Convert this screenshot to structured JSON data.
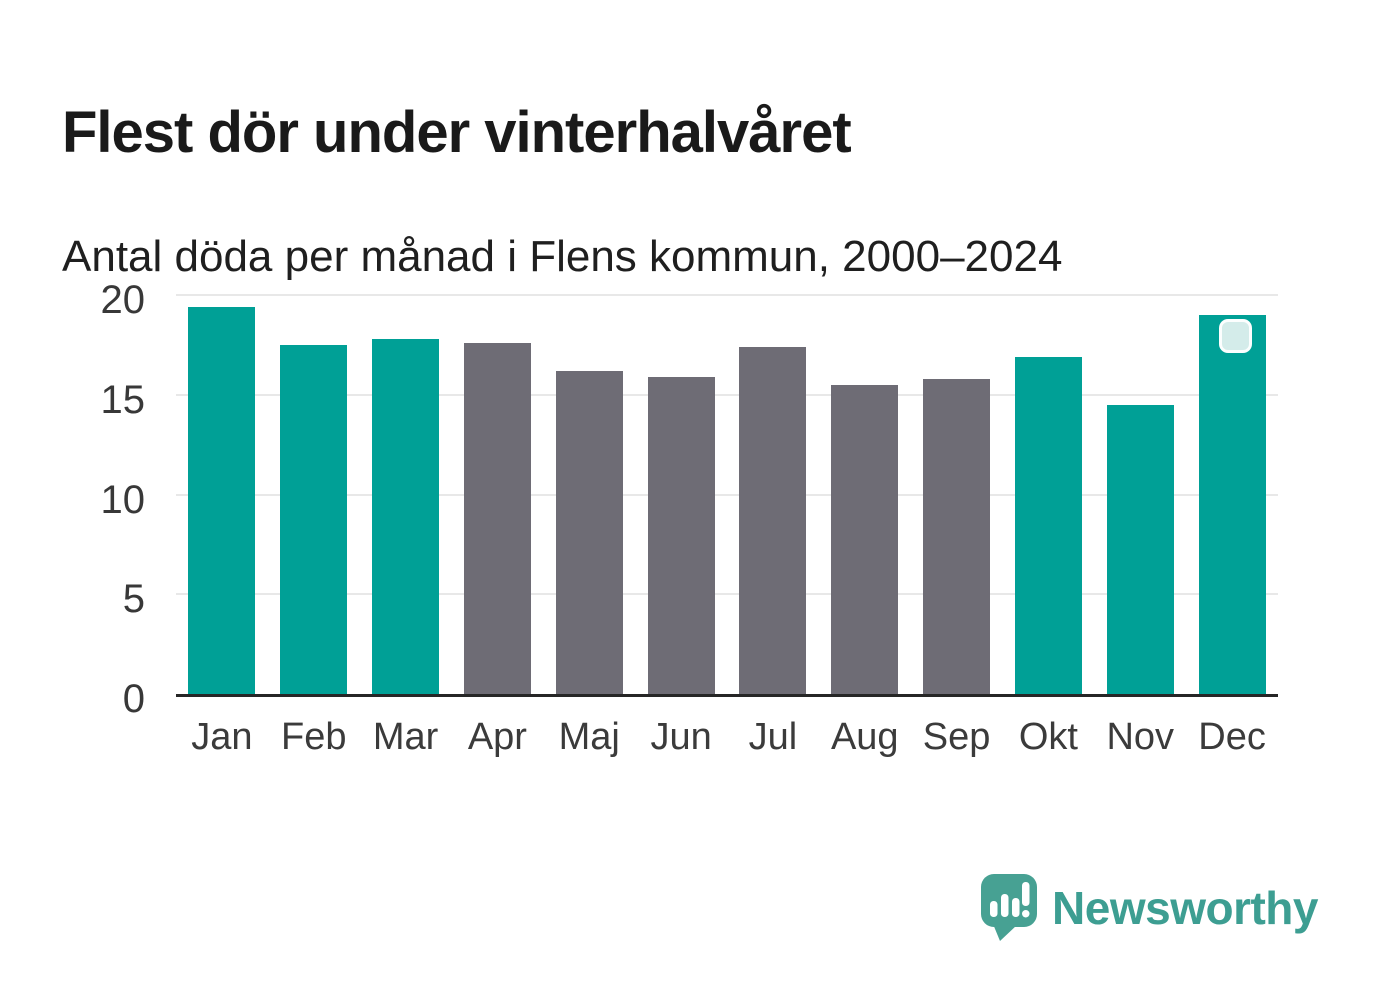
{
  "chart_data": {
    "type": "bar",
    "title": "Flest dör under vinterhalvåret",
    "subtitle": "Antal döda per månad i Flens kommun, 2000–2024",
    "categories": [
      "Jan",
      "Feb",
      "Mar",
      "Apr",
      "Maj",
      "Jun",
      "Jul",
      "Aug",
      "Sep",
      "Okt",
      "Nov",
      "Dec"
    ],
    "values": [
      19.4,
      17.5,
      17.8,
      17.6,
      16.2,
      15.9,
      17.4,
      15.5,
      15.8,
      16.9,
      14.5,
      19.0
    ],
    "bar_color_keys": [
      "teal",
      "teal",
      "teal",
      "gray",
      "gray",
      "gray",
      "gray",
      "gray",
      "gray",
      "teal",
      "teal",
      "teal"
    ],
    "xlabel": "",
    "ylabel": "",
    "ylim": [
      0,
      20
    ],
    "yticks": [
      0,
      5,
      10,
      15,
      20
    ],
    "grid": "horizontal",
    "legend": "none"
  },
  "colors": {
    "teal": "#00A096",
    "gray": "#6E6C75",
    "axis": "#262626",
    "gridline": "#E8E8E8",
    "title_text": "#1A1A1A",
    "tick_text": "#3B3B3B",
    "brand_teal": "#3D9E92",
    "logo_fill": "#47A193",
    "cursor_fill": "#DFF0EE"
  },
  "cursor_marker": {
    "attached_to": "Dec"
  },
  "brand": {
    "name": "Newsworthy",
    "logo_icon": "speech-bubble-bar-chart-icon"
  }
}
